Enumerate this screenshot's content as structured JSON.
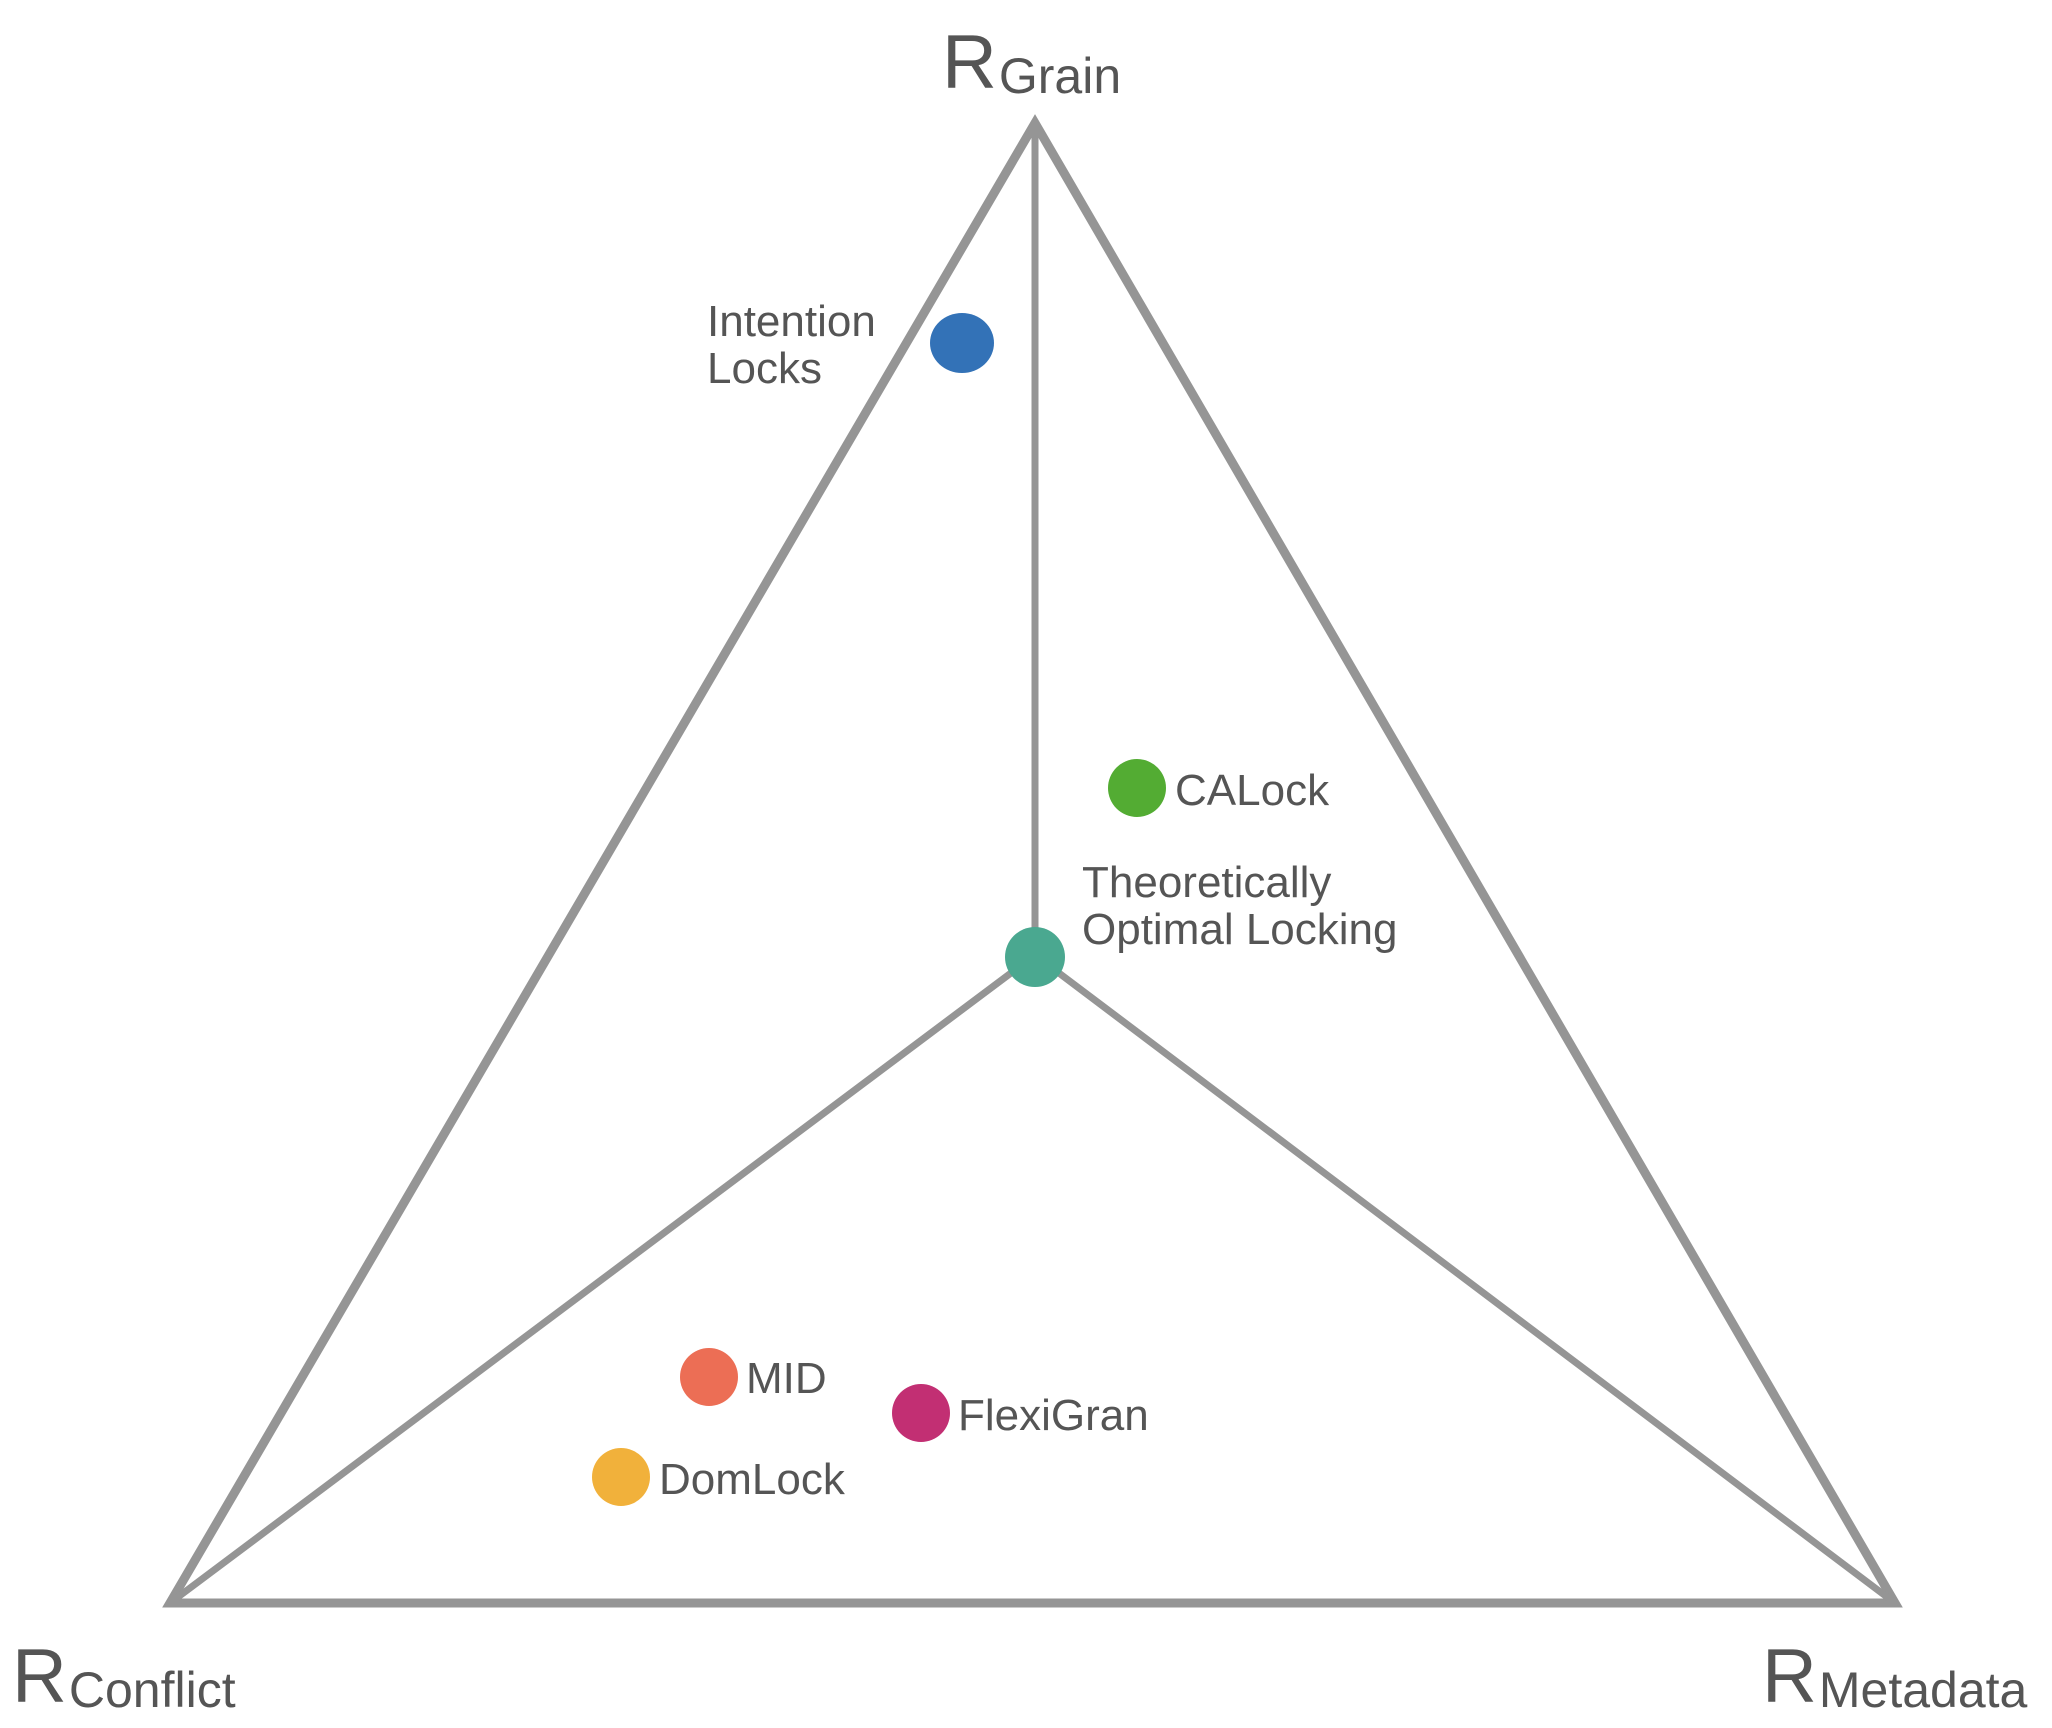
{
  "vertices": {
    "top": {
      "main": "R",
      "sub": "Grain"
    },
    "left": {
      "main": "R",
      "sub": "Conflict"
    },
    "right": {
      "main": "R",
      "sub": "Metadata"
    }
  },
  "points": [
    {
      "id": "intention-locks",
      "lines": [
        "Intention",
        "Locks"
      ],
      "color": "#3372b7"
    },
    {
      "id": "calock",
      "lines": [
        "CALock"
      ],
      "color": "#53ac33"
    },
    {
      "id": "theoretically-optimal",
      "lines": [
        "Theoretically",
        "Optimal Locking"
      ],
      "color": "#4aa890"
    },
    {
      "id": "mid",
      "lines": [
        "MID"
      ],
      "color": "#ec6e55"
    },
    {
      "id": "flexigran",
      "lines": [
        "FlexiGran"
      ],
      "color": "#c22f73"
    },
    {
      "id": "domlock",
      "lines": [
        "DomLock"
      ],
      "color": "#f1b13b"
    }
  ],
  "colors": {
    "line": "#959595",
    "text": "#555555"
  }
}
